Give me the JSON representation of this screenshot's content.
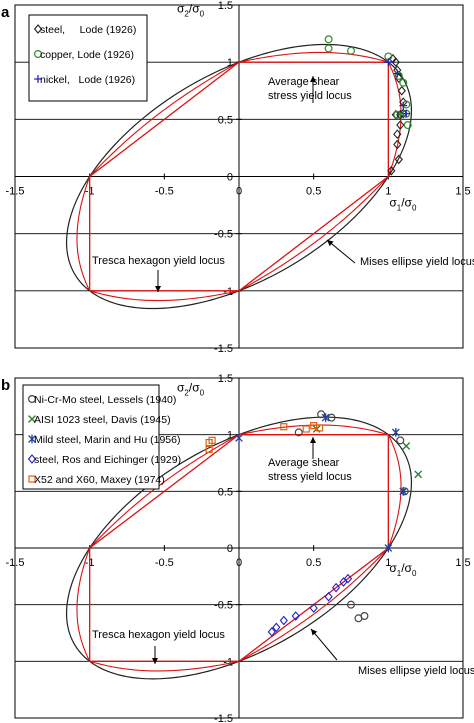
{
  "chart_data": [
    {
      "panel_label": "a",
      "type": "scatter",
      "x_axis": {
        "label": "σ1/σ0",
        "range": [
          -1.5,
          1.5
        ],
        "ticks": [
          -1.5,
          -1,
          -0.5,
          0,
          0.5,
          1,
          1.5
        ],
        "tick_labels": [
          "-1.5",
          "-1",
          "-0.5",
          "0",
          "0.5",
          "1",
          "1.5"
        ]
      },
      "y_axis": {
        "label": "σ2/σ0",
        "range": [
          -1.5,
          1.5
        ],
        "ticks": [
          -1.5,
          -1,
          -0.5,
          0,
          0.5,
          1,
          1.5
        ],
        "tick_labels": [
          "-1.5",
          "-1",
          "-0.5",
          "0",
          "0.5",
          "1",
          "1.5"
        ]
      },
      "grid": "horizontal",
      "legend": {
        "placement": "top-left",
        "entries": [
          {
            "label": "steel,     Lode (1926)",
            "marker": "diamond",
            "color": "#222222"
          },
          {
            "label": "copper, Lode (1926)",
            "marker": "circle",
            "color": "#2e8b2e"
          },
          {
            "label": "nickel,   Lode (1926)",
            "marker": "plus",
            "color": "#2222cc"
          }
        ]
      },
      "loci": [
        {
          "name": "Mises ellipse yield locus",
          "shape": "ellipse",
          "color": "#222222"
        },
        {
          "name": "Average shear stress yield locus",
          "shape": "superellipse",
          "color": "#dd1111"
        },
        {
          "name": "Tresca hexagon yield locus",
          "shape": "hexagon",
          "color": "#dd1111"
        }
      ],
      "annotations": [
        {
          "text": "Average shear\nstress yield locus",
          "at": [
            0.6,
            0.55
          ]
        },
        {
          "text": "Tresca hexagon yield locus",
          "at": [
            -0.6,
            -0.75
          ]
        },
        {
          "text": "Mises ellipse yield locus",
          "at": [
            0.9,
            -0.8
          ]
        }
      ],
      "series": [
        {
          "name": "steel, Lode (1926)",
          "marker": "diamond",
          "color": "#222222",
          "points": [
            [
              1.03,
              1.03
            ],
            [
              1.05,
              1.0
            ],
            [
              1.06,
              0.93
            ],
            [
              1.07,
              0.86
            ],
            [
              1.09,
              0.75
            ],
            [
              1.1,
              0.65
            ],
            [
              1.1,
              0.55
            ],
            [
              1.08,
              0.45
            ],
            [
              1.06,
              0.37
            ],
            [
              1.06,
              0.28
            ],
            [
              1.07,
              0.15
            ],
            [
              1.02,
              0.05
            ],
            [
              1.05,
              0.54
            ],
            [
              1.08,
              0.54
            ]
          ]
        },
        {
          "name": "copper, Lode (1926)",
          "marker": "circle",
          "color": "#2e8b2e",
          "points": [
            [
              0.6,
              1.2
            ],
            [
              0.6,
              1.12
            ],
            [
              0.75,
              1.1
            ],
            [
              1.0,
              1.05
            ],
            [
              1.07,
              0.88
            ],
            [
              1.1,
              0.82
            ],
            [
              1.12,
              0.63
            ],
            [
              1.12,
              0.55
            ],
            [
              1.06,
              0.54
            ],
            [
              1.13,
              0.45
            ]
          ]
        },
        {
          "name": "nickel, Lode (1926)",
          "marker": "plus",
          "color": "#2222cc",
          "points": [
            [
              1.0,
              1.0
            ],
            [
              1.06,
              0.9
            ],
            [
              1.1,
              0.62
            ],
            [
              1.12,
              0.55
            ]
          ]
        }
      ]
    },
    {
      "panel_label": "b",
      "type": "scatter",
      "x_axis": {
        "label": "σ1/σ0",
        "range": [
          -1.5,
          1.5
        ],
        "ticks": [
          -1.5,
          -1,
          -0.5,
          0,
          0.5,
          1,
          1.5
        ],
        "tick_labels": [
          "-1.5",
          "-1",
          "-0.5",
          "0",
          "0.5",
          "1",
          "1.5"
        ]
      },
      "y_axis": {
        "label": "σ2/σ0",
        "range": [
          -1.5,
          1.5
        ],
        "ticks": [
          -1.5,
          -1,
          -0.5,
          0,
          0.5,
          1,
          1.5
        ],
        "tick_labels": [
          "-1.5",
          "-1",
          "-0.5",
          "0",
          "0.5",
          "1",
          "1.5"
        ]
      },
      "grid": "horizontal",
      "legend": {
        "placement": "top-left",
        "entries": [
          {
            "label": "Ni-Cr-Mo steel, Lessels (1940)",
            "marker": "circle",
            "color": "#444444"
          },
          {
            "label": "AISI 1023 steel, Davis (1945)",
            "marker": "x",
            "color": "#2e7d32"
          },
          {
            "label": "Mild steel, Marin and Hu (1956)",
            "marker": "star",
            "color": "#1f3fa0"
          },
          {
            "label": "steel, Ros and Eichinger (1929)",
            "marker": "diamond",
            "color": "#2222cc"
          },
          {
            "label": "X52 and X60, Maxey (1974)",
            "marker": "square",
            "color": "#e06010"
          }
        ]
      },
      "loci": [
        {
          "name": "Mises ellipse yield locus",
          "shape": "ellipse",
          "color": "#222222"
        },
        {
          "name": "Average shear stress yield locus",
          "shape": "superellipse",
          "color": "#dd1111"
        },
        {
          "name": "Tresca hexagon yield locus",
          "shape": "hexagon",
          "color": "#dd1111"
        }
      ],
      "annotations": [
        {
          "text": "Average shear\nstress yield locus",
          "at": [
            0.6,
            0.55
          ]
        },
        {
          "text": "Tresca hexagon yield locus",
          "at": [
            -0.6,
            -0.75
          ]
        },
        {
          "text": "Mises ellipse yield locus",
          "at": [
            0.9,
            -0.8
          ]
        }
      ],
      "series": [
        {
          "name": "Ni-Cr-Mo steel, Lessels (1940)",
          "marker": "circle",
          "color": "#444444",
          "points": [
            [
              0.55,
              1.18
            ],
            [
              0.62,
              1.15
            ],
            [
              0.4,
              1.02
            ],
            [
              1.08,
              0.95
            ],
            [
              1.11,
              0.5
            ],
            [
              0.75,
              -0.5
            ],
            [
              0.8,
              -0.62
            ],
            [
              0.84,
              -0.6
            ]
          ]
        },
        {
          "name": "AISI 1023 steel, Davis (1945)",
          "marker": "x",
          "color": "#2e7d32",
          "points": [
            [
              0.52,
              1.05
            ],
            [
              1.12,
              0.9
            ],
            [
              1.2,
              0.65
            ],
            [
              1.1,
              0.5
            ]
          ]
        },
        {
          "name": "Mild steel, Marin and Hu (1956)",
          "marker": "star",
          "color": "#1f3fa0",
          "points": [
            [
              0.0,
              0.97
            ],
            [
              0.58,
              1.15
            ],
            [
              1.05,
              1.02
            ],
            [
              1.1,
              0.5
            ],
            [
              1.0,
              0.0
            ]
          ]
        },
        {
          "name": "steel, Ros and Eichinger (1929)",
          "marker": "diamond",
          "color": "#2222cc",
          "points": [
            [
              0.65,
              -0.35
            ],
            [
              0.7,
              -0.3
            ],
            [
              0.73,
              -0.27
            ],
            [
              0.6,
              -0.43
            ],
            [
              0.5,
              -0.53
            ],
            [
              0.38,
              -0.6
            ],
            [
              0.3,
              -0.64
            ],
            [
              0.25,
              -0.7
            ],
            [
              0.22,
              -0.74
            ]
          ]
        },
        {
          "name": "X52 and X60, Maxey (1974)",
          "marker": "square",
          "color": "#e06010",
          "points": [
            [
              -0.2,
              0.93
            ],
            [
              -0.2,
              0.87
            ],
            [
              -0.18,
              0.95
            ],
            [
              0.3,
              1.07
            ],
            [
              0.45,
              1.05
            ],
            [
              0.5,
              1.08
            ],
            [
              0.54,
              1.06
            ]
          ]
        }
      ]
    }
  ]
}
